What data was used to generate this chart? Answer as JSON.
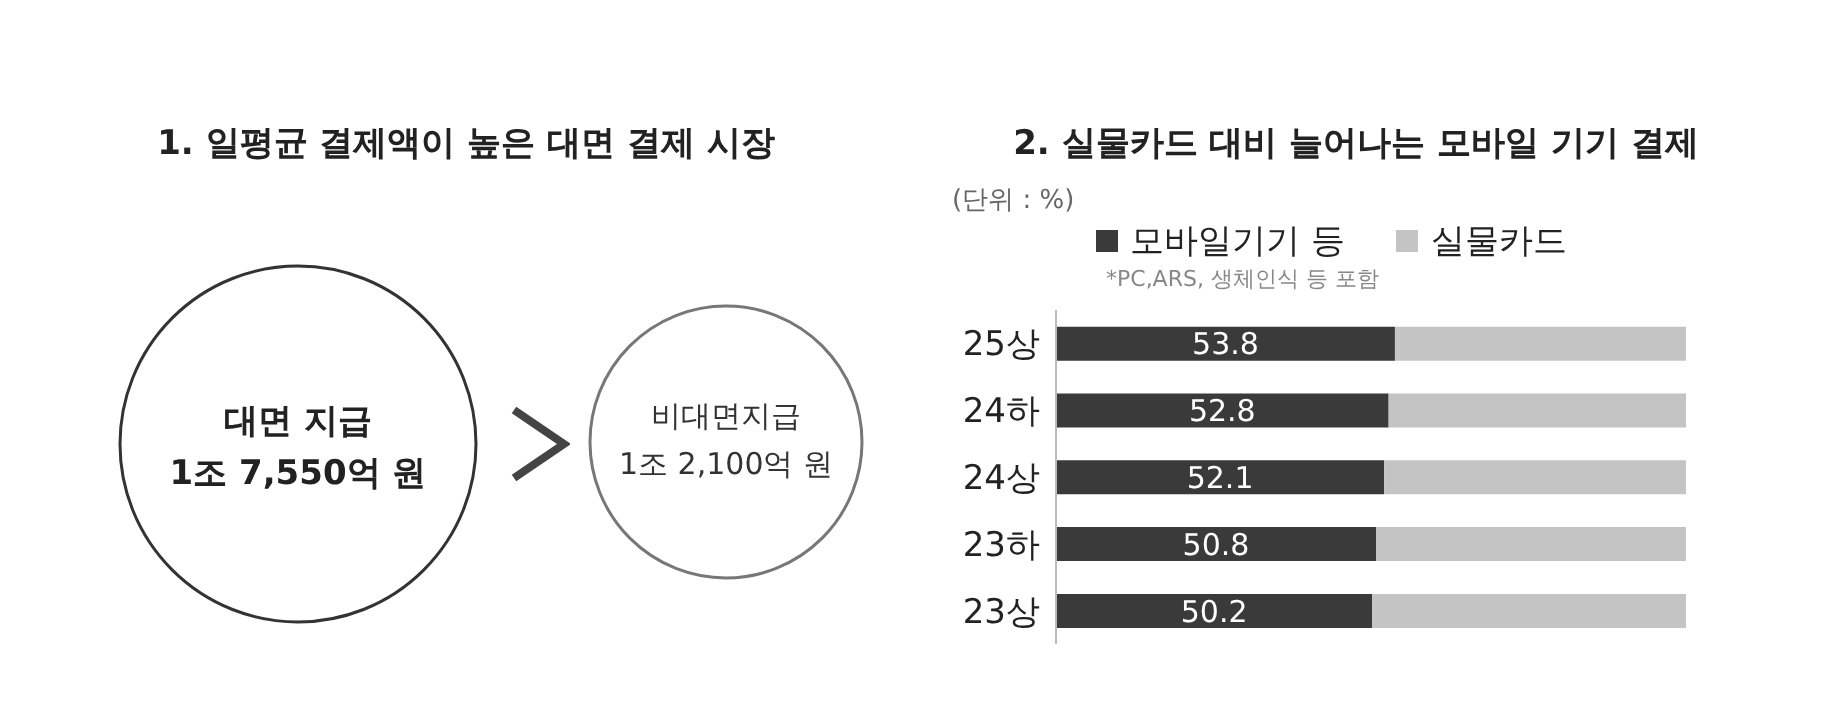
{
  "chart_data": [
    {
      "type": "other",
      "title": "1. 일평균 결제액이 높은 대면 결제 시장",
      "annotations": [
        "대면 지급",
        "1조 7,550억 원",
        "비대면지급",
        "1조 2,100억 원"
      ]
    },
    {
      "type": "bar",
      "orientation": "horizontal",
      "stacked": true,
      "title": "2. 실물카드 대비 늘어나는 모바일 기기 결제",
      "categories": [
        "25상",
        "24하",
        "24상",
        "23하",
        "23상"
      ],
      "series": [
        {
          "name": "모바일기기 등",
          "color": "#3a3a3a",
          "values": [
            53.8,
            52.8,
            52.1,
            50.8,
            50.2
          ],
          "value_labels": [
            "53.8",
            "52.8",
            "52.1",
            "50.8",
            "50.2"
          ]
        },
        {
          "name": "실물카드",
          "color": "#c4c4c4",
          "values": [
            46.2,
            47.2,
            47.9,
            49.2,
            49.8
          ]
        }
      ],
      "xlim": [
        0,
        100
      ],
      "tick_labels": "y",
      "legend": "top",
      "annotations": [
        "(단위 : %)",
        "*PC,ARS, 생체인식 등 포함"
      ]
    }
  ]
}
